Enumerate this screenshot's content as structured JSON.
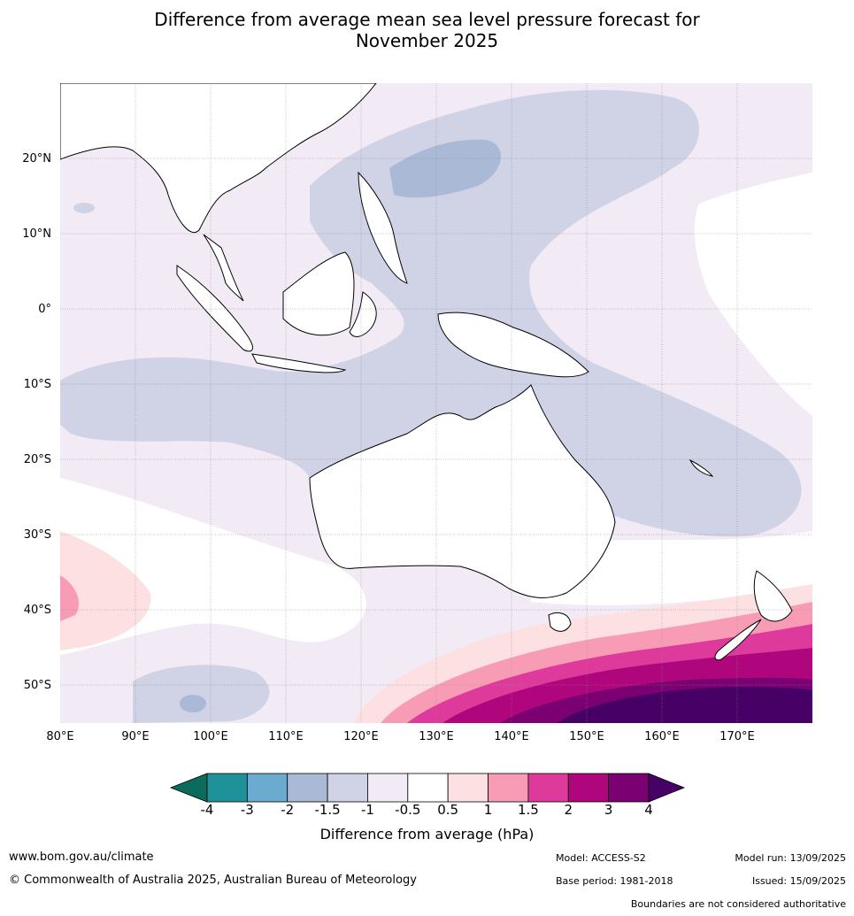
{
  "title_line1": "Difference from average mean sea level pressure forecast for",
  "title_line2": "November 2025",
  "lat_labels": [
    "20°N",
    "10°N",
    "0°",
    "10°S",
    "20°S",
    "30°S",
    "40°S",
    "50°S"
  ],
  "lon_labels": [
    "80°E",
    "90°E",
    "100°E",
    "110°E",
    "120°E",
    "130°E",
    "140°E",
    "150°E",
    "160°E",
    "170°E"
  ],
  "colorbar": {
    "title": "Difference from average (hPa)",
    "ticks": [
      "-4",
      "-3",
      "-2",
      "-1.5",
      "-1",
      "-0.5",
      "0.5",
      "1",
      "1.5",
      "2",
      "3",
      "4"
    ],
    "colors": [
      "#0b6b5c",
      "#1f9198",
      "#6aabcf",
      "#a9b9d6",
      "#d0d2e6",
      "#f2ebf5",
      "#ffffff",
      "#fde0e1",
      "#f89cb6",
      "#de3a9c",
      "#b0067d",
      "#7b0071",
      "#470066"
    ]
  },
  "footer": {
    "website": "www.bom.gov.au/climate",
    "copyright": "© Commonwealth of Australia 2025, Australian Bureau of Meteorology",
    "model": "Model: ACCESS-S2",
    "base_period": "Base period: 1981-2018",
    "model_run": "Model run: 13/09/2025",
    "issued": "Issued: 15/09/2025",
    "disclaimer": "Boundaries are not considered authoritative"
  }
}
